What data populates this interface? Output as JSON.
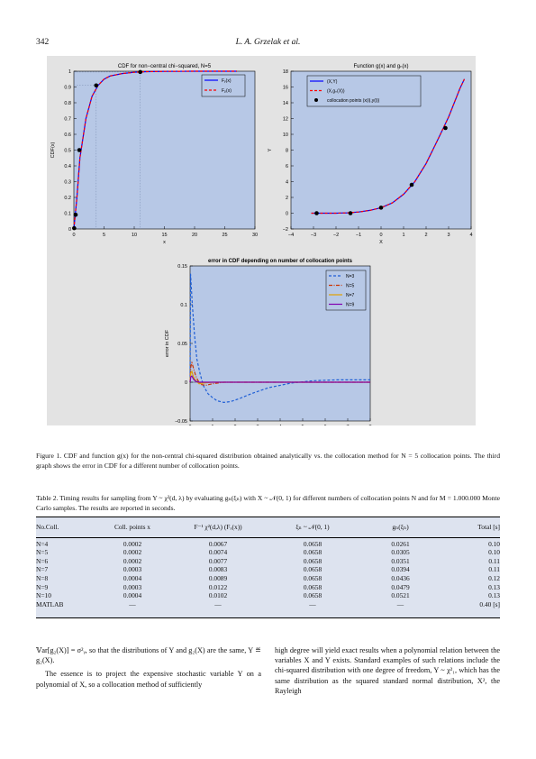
{
  "header": {
    "page_number": "342",
    "running_head": "L. A. Grzelak et al."
  },
  "charts": {
    "cdf": {
      "title": "CDF for non−central chi−squared, N=5",
      "xlabel": "x",
      "ylabel": "CDF(x)",
      "xticks": [
        "0",
        "5",
        "10",
        "15",
        "20",
        "25",
        "30"
      ],
      "yticks": [
        "0",
        "0.1",
        "0.2",
        "0.3",
        "0.4",
        "0.5",
        "0.6",
        "0.7",
        "0.8",
        "0.9",
        "1"
      ],
      "legend": [
        "Fᵧ(x)",
        "Fₙ̱(x)"
      ]
    },
    "gfun": {
      "title": "Function g(x) and gₙ(x)",
      "xlabel": "X",
      "ylabel": "Y",
      "xticks": [
        "−4",
        "−3",
        "−2",
        "−1",
        "0",
        "1",
        "2",
        "3",
        "4"
      ],
      "yticks": [
        "−2",
        "0",
        "2",
        "4",
        "6",
        "8",
        "10",
        "12",
        "14",
        "16",
        "18"
      ],
      "legend": [
        "(X,Y)",
        "(X,gₙ(X))",
        "collocation points (x(i),y(i))"
      ]
    },
    "err": {
      "title": "error in CDF depending on number of collocation points",
      "xlabel": "x",
      "ylabel": "error in CDF",
      "xticks": [
        "0",
        "1",
        "2",
        "3",
        "4",
        "5",
        "6",
        "7",
        "8"
      ],
      "yticks": [
        "−0.05",
        "0",
        "0.05",
        "0.1",
        "0.15"
      ],
      "legend": [
        "N=3",
        "N=5",
        "N=7",
        "N=9"
      ]
    }
  },
  "chart_data": [
    {
      "type": "line",
      "title": "CDF for non−central chi−squared, N=5",
      "xlabel": "x",
      "ylabel": "CDF(x)",
      "xlim": [
        0,
        30
      ],
      "ylim": [
        0,
        1
      ],
      "series": [
        {
          "name": "Fᵧ(x)",
          "color": "#0000ff",
          "x": [
            0,
            0.5,
            1,
            2,
            3,
            4,
            5,
            6,
            8,
            10,
            12,
            15,
            20,
            27
          ],
          "y": [
            0,
            0.2,
            0.45,
            0.7,
            0.84,
            0.91,
            0.95,
            0.97,
            0.985,
            0.993,
            0.997,
            0.999,
            1,
            1
          ]
        },
        {
          "name": "Fₙ̱(x)",
          "color": "#ff0000",
          "x": [
            0,
            0.5,
            1,
            2,
            3,
            4,
            5,
            6,
            8,
            10,
            12,
            15,
            20,
            27
          ],
          "y": [
            0,
            0.2,
            0.45,
            0.7,
            0.84,
            0.91,
            0.95,
            0.97,
            0.985,
            0.993,
            0.997,
            0.999,
            1,
            1
          ]
        }
      ],
      "points": {
        "x": [
          0.05,
          0.3,
          0.9,
          3.7,
          11
        ],
        "y": [
          0.005,
          0.09,
          0.5,
          0.91,
          0.995
        ]
      }
    },
    {
      "type": "line",
      "title": "Function g(x) and gₙ(x)",
      "xlabel": "X",
      "ylabel": "Y",
      "xlim": [
        -4,
        4
      ],
      "ylim": [
        -2,
        18
      ],
      "series": [
        {
          "name": "(X,Y)",
          "color": "#0000ff",
          "x": [
            -3.1,
            -2.5,
            -2,
            -1.5,
            -1,
            -0.5,
            0,
            0.5,
            1,
            1.5,
            2,
            2.5,
            3,
            3.5,
            3.7
          ],
          "y": [
            0,
            0,
            0,
            0.05,
            0.15,
            0.35,
            0.7,
            1.3,
            2.4,
            4,
            6.3,
            9.2,
            12.2,
            15.8,
            17
          ]
        },
        {
          "name": "(X,gₙ(X))",
          "color": "#ff0000",
          "x": [
            -3.1,
            -2.5,
            -2,
            -1.5,
            -1,
            -0.5,
            0,
            0.5,
            1,
            1.5,
            2,
            2.5,
            3,
            3.5,
            3.7
          ],
          "y": [
            0,
            0,
            0,
            0.05,
            0.15,
            0.35,
            0.7,
            1.3,
            2.4,
            4,
            6.3,
            9.2,
            12.2,
            15.8,
            17
          ]
        }
      ],
      "points": {
        "name": "collocation points (x(i),y(i))",
        "x": [
          -2.86,
          -1.36,
          0,
          1.36,
          2.86
        ],
        "y": [
          0,
          0,
          0.7,
          3.6,
          10.8
        ]
      }
    },
    {
      "type": "line",
      "title": "error in CDF depending on number of collocation points",
      "xlabel": "x",
      "ylabel": "error in CDF",
      "xlim": [
        0,
        8
      ],
      "ylim": [
        -0.05,
        0.15
      ],
      "series": [
        {
          "name": "N=3",
          "color": "#1f5fd6",
          "x": [
            0,
            0.02,
            0.1,
            0.2,
            0.3,
            0.45,
            0.6,
            0.8,
            1,
            1.2,
            1.5,
            1.8,
            2.2,
            2.8,
            3.5,
            4.5,
            5.5,
            6.5,
            8
          ],
          "y": [
            0,
            0.14,
            0.1,
            0.06,
            0.03,
            0.01,
            -0.005,
            -0.015,
            -0.02,
            -0.024,
            -0.026,
            -0.025,
            -0.021,
            -0.014,
            -0.007,
            -0.001,
            0.002,
            0.003,
            0.003
          ]
        },
        {
          "name": "N=5",
          "color": "#cc3300",
          "x": [
            0,
            0.03,
            0.08,
            0.15,
            0.25,
            0.35,
            0.5,
            0.7,
            1,
            1.5,
            2,
            3,
            5,
            8
          ],
          "y": [
            0,
            0.02,
            0.025,
            0.018,
            0.008,
            0.002,
            -0.003,
            -0.004,
            -0.002,
            0,
            0,
            0,
            0,
            0
          ]
        },
        {
          "name": "N=7",
          "color": "#e0a000",
          "x": [
            0,
            0.03,
            0.08,
            0.15,
            0.25,
            0.4,
            0.6,
            1,
            2,
            8
          ],
          "y": [
            0,
            0.012,
            0.014,
            0.007,
            0.002,
            -0.002,
            -0.001,
            0,
            0,
            0
          ]
        },
        {
          "name": "N=9",
          "color": "#8000b0",
          "x": [
            0,
            0.03,
            0.08,
            0.15,
            0.25,
            0.4,
            1,
            8
          ],
          "y": [
            0,
            0.007,
            0.008,
            0.004,
            0.001,
            0,
            0,
            0
          ]
        }
      ]
    }
  ],
  "figure_caption": {
    "label": "Figure 1.",
    "text": "CDF and function g(x) for the non-central chi-squared distribution obtained analytically vs. the collocation method for N = 5 collocation points. The third graph shows the error in CDF for a different number of collocation points."
  },
  "table": {
    "caption_label": "Table 2.",
    "caption_text": "Timing results for sampling from Y ~ χ²(d, λ) by evaluating gₙ(ξₙ) with X ~ 𝒩(0, 1) for different numbers of collocation points N and for M = 1.000.000 Monte Carlo samples. The results are reported in seconds.",
    "headers": [
      "No.Coll.",
      "Coll. points x",
      "F⁻¹ χ²(d,λ) (Fₓ(x))",
      "ξₙ ~ 𝒩(0, 1)",
      "gₙ(ξₙ)",
      "Total [s]"
    ],
    "rows": [
      [
        "N=4",
        "0.0002",
        "0.0067",
        "0.0658",
        "0.0261",
        "0.10"
      ],
      [
        "N=5",
        "0.0002",
        "0.0074",
        "0.0658",
        "0.0305",
        "0.10"
      ],
      [
        "N=6",
        "0.0002",
        "0.0077",
        "0.0658",
        "0.0351",
        "0.11"
      ],
      [
        "N=7",
        "0.0003",
        "0.0083",
        "0.0658",
        "0.0394",
        "0.11"
      ],
      [
        "N=8",
        "0.0004",
        "0.0089",
        "0.0658",
        "0.0436",
        "0.12"
      ],
      [
        "N=9",
        "0.0003",
        "0.0122",
        "0.0658",
        "0.0479",
        "0.13"
      ],
      [
        "N=10",
        "0.0004",
        "0.0102",
        "0.0658",
        "0.0521",
        "0.13"
      ],
      [
        "MATLAB",
        "—",
        "—",
        "—",
        "—",
        "0.40 [s]"
      ]
    ]
  },
  "body": {
    "left_p1": "𝕍ar[g₂(X)] = σ²ᵧ, so that the distributions of Y and g₂(X) are the same, Y ≝ g₂(X).",
    "left_p2": "The essence is to project the expensive stochastic variable Y on a polynomial of X, so a collocation method of sufficiently",
    "right_p1": "high degree will yield exact results when a polynomial relation between the variables X and Y exists. Standard examples of such relations include the chi-squared distribution with one degree of freedom, Y ~ χ²₁, which has the same distribution as the squared standard normal distribution, X², the Rayleigh"
  }
}
